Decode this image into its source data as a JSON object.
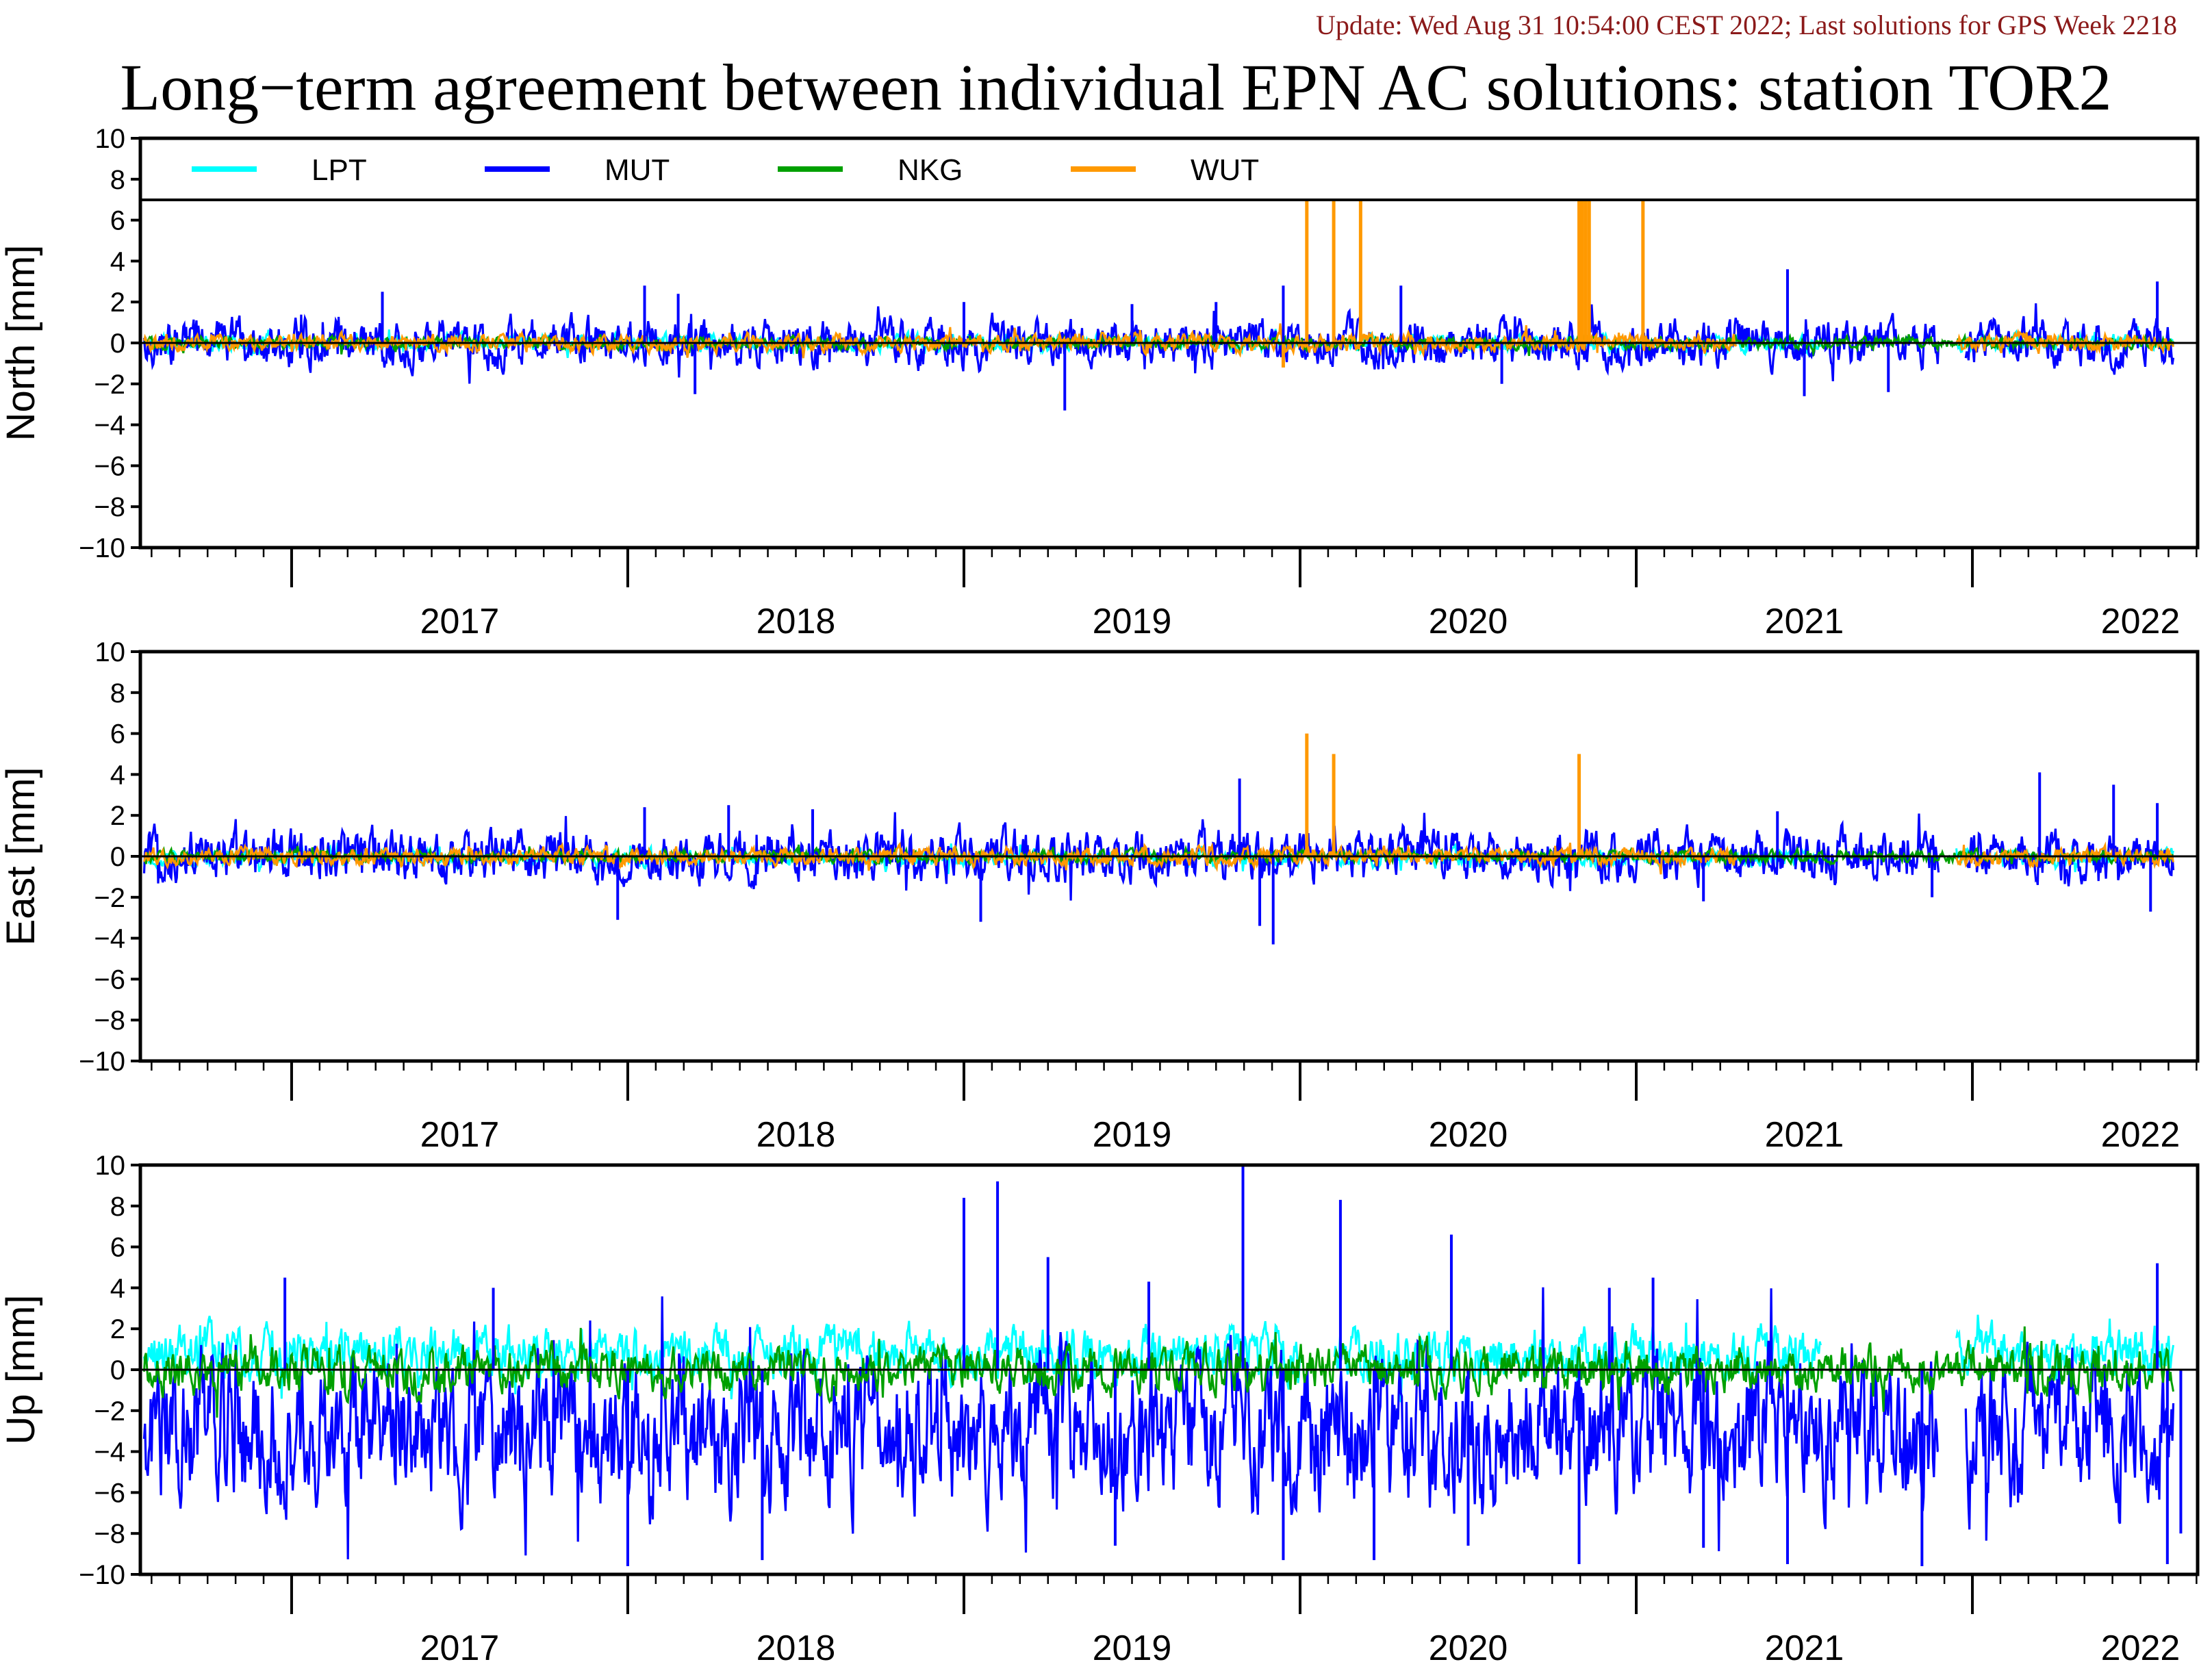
{
  "update_text": "Update: Wed Aug 31 10:54:00 CEST 2022; Last solutions for GPS Week 2218",
  "title": "Long−term agreement between individual EPN AC solutions: station TOR2",
  "chart_data": [
    {
      "type": "line",
      "panel": "north",
      "ylabel": "North [mm]",
      "ylim": [
        -10,
        10
      ],
      "yticks": [
        "10",
        "8",
        "6",
        "4",
        "2",
        "0",
        "−2",
        "−4",
        "−6",
        "−8",
        "−10"
      ],
      "x_start": 2016.55,
      "x_end": 2022.67,
      "year_labels": [
        "2017",
        "2018",
        "2019",
        "2020",
        "2021",
        "2022"
      ],
      "legend": [
        {
          "name": "LPT",
          "color": "#00FFFF"
        },
        {
          "name": "MUT",
          "color": "#0000FF"
        },
        {
          "name": "NKG",
          "color": "#00A000"
        },
        {
          "name": "WUT",
          "color": "#FF9900"
        }
      ],
      "series": [
        {
          "name": "LPT",
          "color": "#00FFFF",
          "amp": 0.3,
          "bias": 0.0,
          "gaps": [
            [
              2020.0,
              2020.1
            ],
            [
              2021.55,
              2021.95
            ]
          ]
        },
        {
          "name": "MUT",
          "color": "#0000FF",
          "amp": 0.8,
          "bias": 0.0,
          "gaps": [
            [
              2021.9,
              2021.98
            ]
          ]
        },
        {
          "name": "NKG",
          "color": "#00A000",
          "amp": 0.2,
          "bias": 0.0,
          "gaps": []
        },
        {
          "name": "WUT",
          "color": "#FF9900",
          "amp": 0.3,
          "bias": 0.0,
          "gaps": [
            [
              2021.3,
              2021.95
            ]
          ]
        }
      ],
      "spikes": [
        {
          "series": "MUT",
          "points": [
            [
              2017.27,
              2.5
            ],
            [
              2018.05,
              2.8
            ],
            [
              2018.15,
              2.4
            ],
            [
              2019.0,
              2.0
            ],
            [
              2019.3,
              -3.3
            ],
            [
              2019.5,
              1.9
            ],
            [
              2019.95,
              2.8
            ],
            [
              2020.3,
              2.8
            ],
            [
              2021.45,
              3.6
            ],
            [
              2022.55,
              3.0
            ],
            [
              2018.2,
              -2.5
            ],
            [
              2019.75,
              2.0
            ],
            [
              2020.6,
              -2.0
            ],
            [
              2021.5,
              -2.6
            ],
            [
              2021.75,
              -2.4
            ]
          ]
        },
        {
          "series": "WUT",
          "points": [
            [
              2020.02,
              10
            ],
            [
              2020.1,
              10
            ],
            [
              2020.18,
              10
            ],
            [
              2020.83,
              10
            ],
            [
              2020.84,
              10
            ],
            [
              2020.85,
              10
            ],
            [
              2020.86,
              10
            ],
            [
              2021.02,
              10
            ],
            [
              2019.95,
              -1.2
            ]
          ]
        }
      ]
    },
    {
      "type": "line",
      "panel": "east",
      "ylabel": "East [mm]",
      "ylim": [
        -10,
        10
      ],
      "yticks": [
        "10",
        "8",
        "6",
        "4",
        "2",
        "0",
        "−2",
        "−4",
        "−6",
        "−8",
        "−10"
      ],
      "x_start": 2016.55,
      "x_end": 2022.67,
      "year_labels": [
        "2017",
        "2018",
        "2019",
        "2020",
        "2021",
        "2022"
      ],
      "series": [
        {
          "name": "LPT",
          "color": "#00FFFF",
          "amp": 0.3,
          "bias": -0.1,
          "gaps": [
            [
              2020.0,
              2020.1
            ],
            [
              2021.55,
              2021.95
            ]
          ]
        },
        {
          "name": "MUT",
          "color": "#0000FF",
          "amp": 0.9,
          "bias": 0.0,
          "gaps": [
            [
              2021.9,
              2021.98
            ]
          ]
        },
        {
          "name": "NKG",
          "color": "#00A000",
          "amp": 0.2,
          "bias": 0.0,
          "gaps": []
        },
        {
          "name": "WUT",
          "color": "#FF9900",
          "amp": 0.3,
          "bias": 0.0,
          "gaps": [
            [
              2021.3,
              2021.95
            ]
          ]
        }
      ],
      "spikes": [
        {
          "series": "MUT",
          "points": [
            [
              2017.97,
              -3.1
            ],
            [
              2018.05,
              2.4
            ],
            [
              2018.3,
              2.5
            ],
            [
              2018.55,
              2.3
            ],
            [
              2019.05,
              -3.2
            ],
            [
              2019.82,
              3.8
            ],
            [
              2019.92,
              -4.3
            ],
            [
              2019.88,
              -3.4
            ],
            [
              2021.42,
              2.2
            ],
            [
              2021.88,
              -2.0
            ],
            [
              2022.2,
              4.1
            ],
            [
              2022.42,
              3.5
            ],
            [
              2022.55,
              2.6
            ],
            [
              2022.53,
              -2.7
            ],
            [
              2021.2,
              -2.2
            ]
          ]
        },
        {
          "series": "WUT",
          "points": [
            [
              2020.02,
              6.0
            ],
            [
              2020.1,
              5.0
            ],
            [
              2020.83,
              5.0
            ]
          ]
        }
      ]
    },
    {
      "type": "line",
      "panel": "up",
      "ylabel": "Up [mm]",
      "ylim": [
        -10,
        10
      ],
      "yticks": [
        "10",
        "8",
        "6",
        "4",
        "2",
        "0",
        "−2",
        "−4",
        "−6",
        "−8",
        "−10"
      ],
      "x_start": 2016.55,
      "x_end": 2022.67,
      "year_labels": [
        "2017",
        "2018",
        "2019",
        "2020",
        "2021",
        "2022"
      ],
      "series": [
        {
          "name": "LPT",
          "color": "#00FFFF",
          "amp": 0.9,
          "bias": 0.8,
          "gaps": [
            [
              2020.0,
              2020.1
            ],
            [
              2021.55,
              2021.95
            ]
          ]
        },
        {
          "name": "MUT",
          "color": "#0000FF",
          "amp": 2.6,
          "bias": -3.0,
          "gaps": [
            [
              2021.9,
              2021.98
            ]
          ]
        },
        {
          "name": "NKG",
          "color": "#00A000",
          "amp": 0.8,
          "bias": 0.0,
          "gaps": []
        },
        {
          "name": "WUT",
          "color": "#FF9900",
          "amp": 0.0,
          "bias": 0.0,
          "gaps": [
            [
              2016.55,
              2022.67
            ]
          ]
        }
      ],
      "spikes": [
        {
          "series": "MUT",
          "points": [
            [
              2016.98,
              4.5
            ],
            [
              2018.0,
              -9.6
            ],
            [
              2018.4,
              -9.3
            ],
            [
              2019.0,
              8.4
            ],
            [
              2019.1,
              9.2
            ],
            [
              2019.25,
              5.5
            ],
            [
              2019.45,
              -8.6
            ],
            [
              2019.83,
              10.0
            ],
            [
              2019.95,
              -9.3
            ],
            [
              2020.12,
              8.3
            ],
            [
              2020.22,
              -9.3
            ],
            [
              2020.45,
              6.6
            ],
            [
              2020.5,
              -8.6
            ],
            [
              2020.83,
              -9.5
            ],
            [
              2020.92,
              4.0
            ],
            [
              2021.05,
              4.5
            ],
            [
              2021.2,
              -8.7
            ],
            [
              2021.45,
              -9.5
            ],
            [
              2021.85,
              -9.6
            ],
            [
              2022.55,
              5.2
            ],
            [
              2022.58,
              -9.5
            ],
            [
              2022.62,
              -8.0
            ],
            [
              2017.6,
              4.0
            ],
            [
              2019.55,
              4.3
            ]
          ]
        }
      ]
    }
  ]
}
